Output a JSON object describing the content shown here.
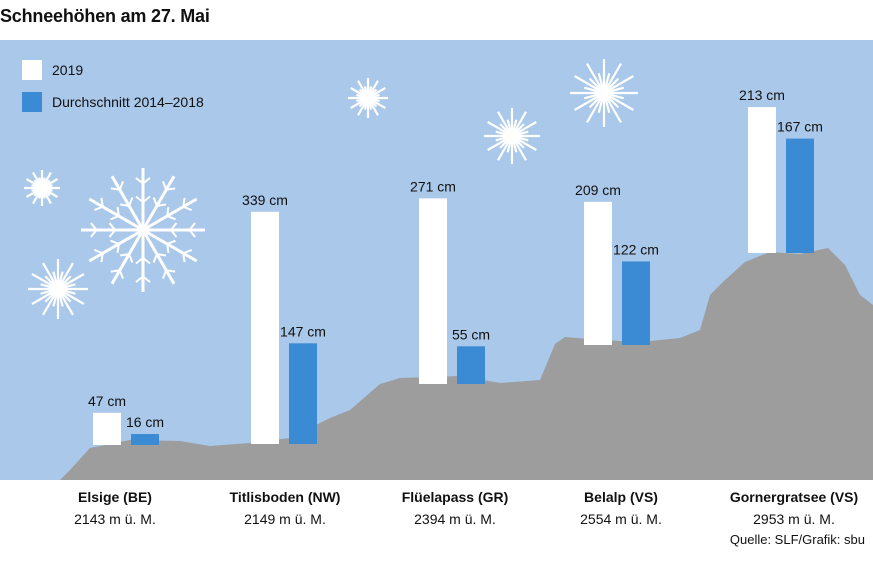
{
  "title": "Schneehöhen am 27. Mai",
  "legend": {
    "items": [
      {
        "label": "2019",
        "color": "#ffffff"
      },
      {
        "label": "Durchschnitt 2014–2018",
        "color": "#3a8bd4"
      }
    ]
  },
  "colors": {
    "background": "#aac8ea",
    "mountain": "#9d9d9d",
    "snowflake": "#ffffff"
  },
  "source": "Quelle: SLF/Grafik: sbu",
  "chart_data": {
    "type": "bar",
    "title": "Schneehöhen am 27. Mai",
    "unit": "cm",
    "categories": [
      "Elsige (BE)",
      "Titlisboden (NW)",
      "Flüelapass (GR)",
      "Belalp (VS)",
      "Gornergratsee (VS)"
    ],
    "elevations": [
      "2143 m ü. M.",
      "2149 m ü. M.",
      "2394 m ü. M.",
      "2554 m ü. M.",
      "2953 m ü. M."
    ],
    "series": [
      {
        "name": "2019",
        "values": [
          47,
          339,
          271,
          209,
          213
        ],
        "labels": [
          "47 cm",
          "339 cm",
          "271 cm",
          "209 cm",
          "213 cm"
        ]
      },
      {
        "name": "Durchschnitt 2014–2018",
        "values": [
          16,
          147,
          55,
          122,
          167
        ],
        "labels": [
          "16 cm",
          "147 cm",
          "55 cm",
          "122 cm",
          "167 cm"
        ]
      }
    ]
  }
}
